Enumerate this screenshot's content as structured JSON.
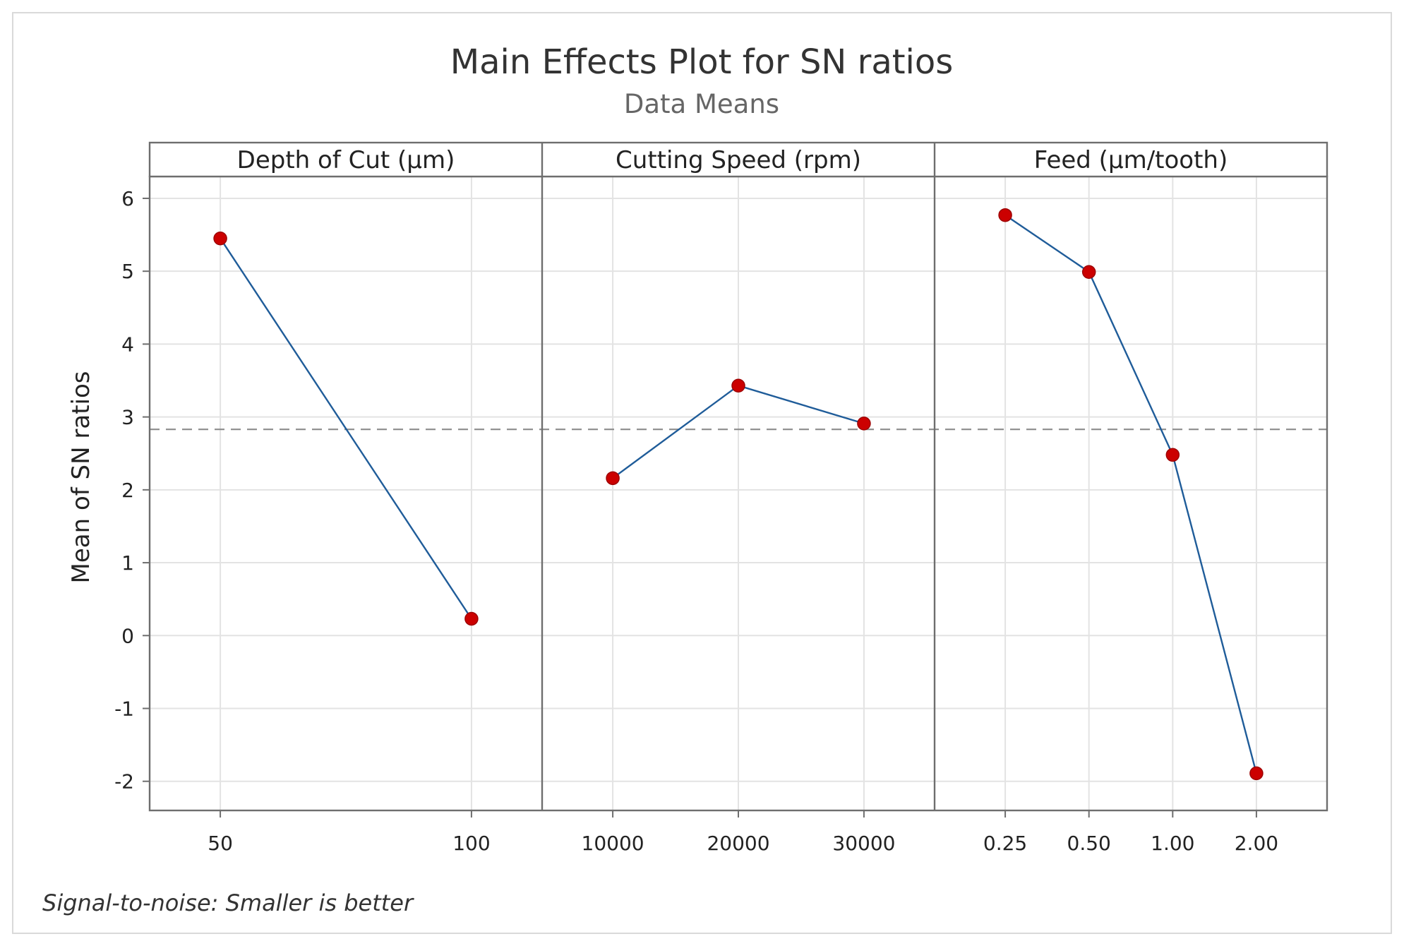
{
  "chart_data": {
    "type": "line",
    "title": "Main Effects Plot for SN ratios",
    "subtitle": "Data Means",
    "ylabel": "Mean of SN ratios",
    "xlabel": "",
    "footnote": "Signal-to-noise: Smaller is better",
    "ylim": [
      -2.4,
      6.3
    ],
    "yticks": [
      -2,
      -1,
      0,
      1,
      2,
      3,
      4,
      5,
      6
    ],
    "ytick_labels": [
      "-2",
      "-1",
      "0",
      "1",
      "2",
      "3",
      "4",
      "5",
      "6"
    ],
    "reference_line": 2.83,
    "grid": true,
    "colors": {
      "line": "#1f5c99",
      "marker": "#cc0000",
      "reference": "#8c8c8c",
      "grid": "#e3e3e3",
      "frame": "#6e6e6e"
    },
    "panels": [
      {
        "name": "Depth of Cut (µm)",
        "categories": [
          "50",
          "100"
        ],
        "values": [
          5.45,
          0.23
        ]
      },
      {
        "name": "Cutting Speed (rpm)",
        "categories": [
          "10000",
          "20000",
          "30000"
        ],
        "values": [
          2.16,
          3.43,
          2.91
        ]
      },
      {
        "name": "Feed (µm/tooth)",
        "categories": [
          "0.25",
          "0.50",
          "1.00",
          "2.00"
        ],
        "values": [
          5.77,
          4.99,
          2.48,
          -1.89
        ]
      }
    ]
  }
}
